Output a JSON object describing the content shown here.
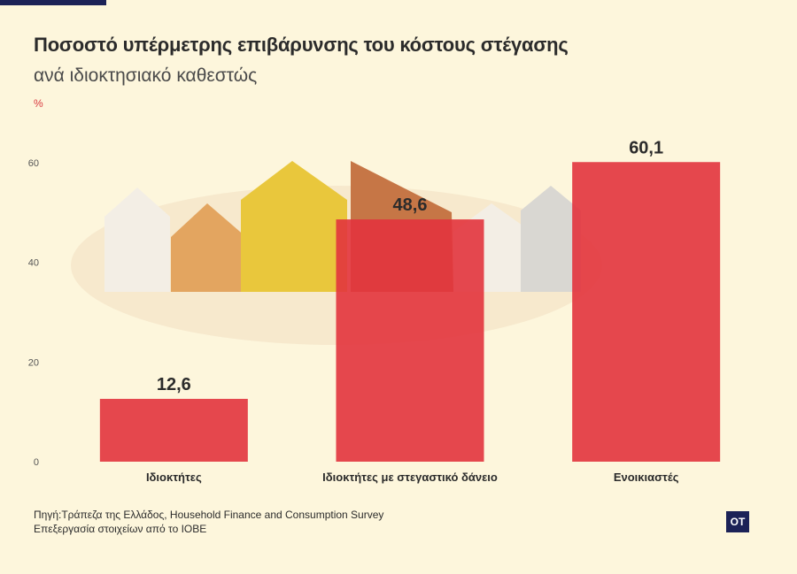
{
  "chart_data": {
    "type": "bar",
    "title": "Ποσοστό υπέρμετρης επιβάρυνσης του κόστους στέγασης",
    "subtitle": "ανά ιδιοκτησιακό καθεστώς",
    "unit": "%",
    "categories": [
      "Ιδιοκτήτες",
      "Ιδιοκτήτες με στεγαστικό δάνειο",
      "Ενοικιαστές"
    ],
    "values": [
      12.6,
      48.6,
      60.1
    ],
    "value_labels": [
      "12,6",
      "48,6",
      "60,1"
    ],
    "yticks": [
      0,
      20,
      40,
      60
    ],
    "ylim": [
      0,
      66
    ],
    "grid": false,
    "bar_color": "#e2343d"
  },
  "source": {
    "line1": "Πηγή:Τράπεζα της Ελλάδος, Household Finance and Consumption Survey",
    "line2": "Επεξεργασία στοιχείων από το ΙΟΒΕ"
  },
  "logo": {
    "text": "OT"
  }
}
